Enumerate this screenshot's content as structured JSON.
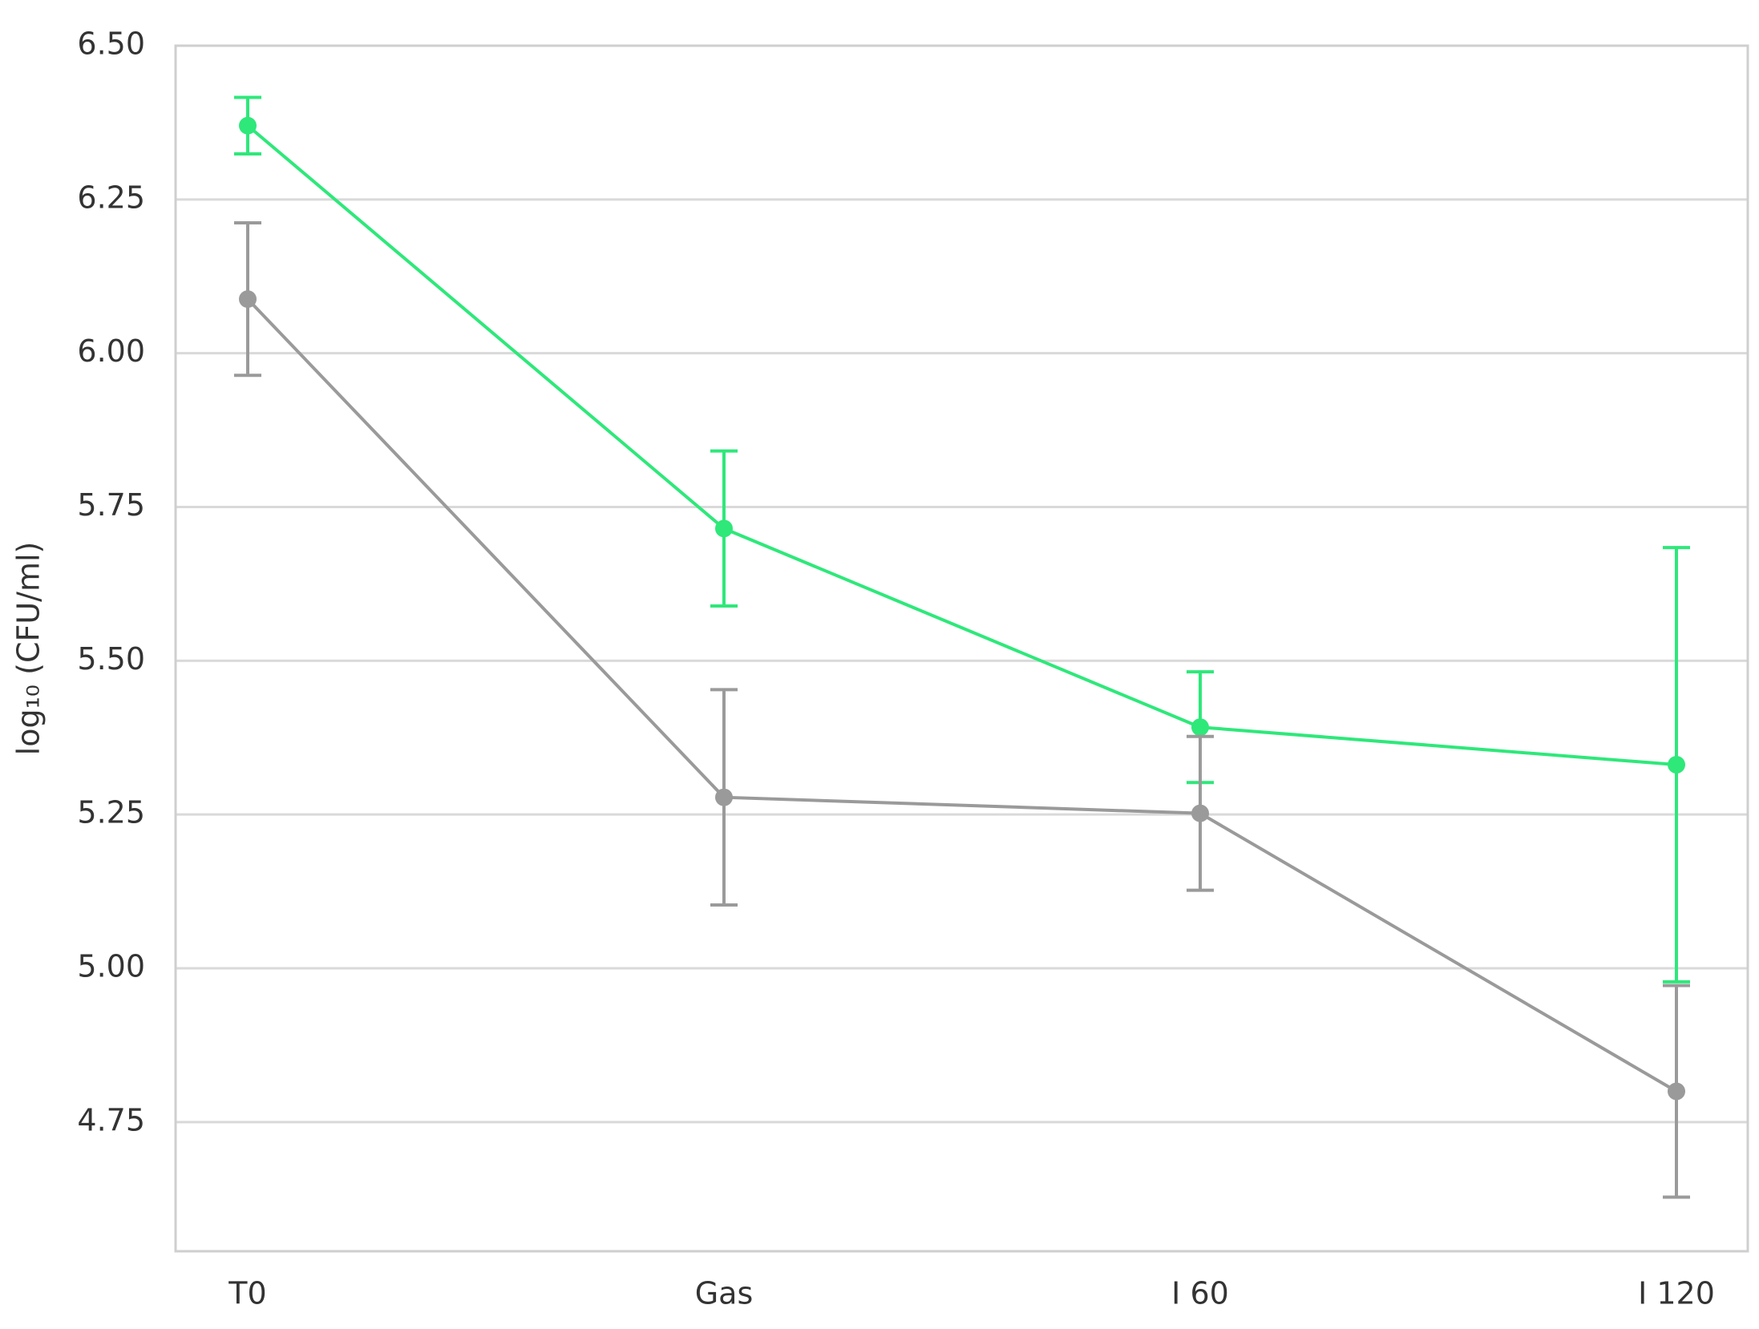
{
  "chart_data": {
    "type": "line",
    "y_label": "log₁₀ (CFU/ml)",
    "categories": [
      "T0",
      "Gas",
      "I 60",
      "I 120"
    ],
    "series": [
      {
        "color": "#2ee87a",
        "values": [
          6.37,
          5.715,
          5.392,
          5.331
        ],
        "errors": [
          0.046,
          0.126,
          0.09,
          0.353
        ]
      },
      {
        "color": "#9a9a9a",
        "values": [
          6.088,
          5.278,
          5.252,
          4.8
        ],
        "errors": [
          0.124,
          0.175,
          0.125,
          0.172
        ]
      }
    ],
    "ylim": [
      4.54,
      6.5
    ],
    "yticks": [
      {
        "value": 4.75,
        "label": "4.75"
      },
      {
        "value": 5,
        "label": "5.00"
      },
      {
        "value": 5.25,
        "label": "5.25"
      },
      {
        "value": 5.5,
        "label": "5.50"
      },
      {
        "value": 5.75,
        "label": "5.75"
      },
      {
        "value": 6,
        "label": "6.00"
      },
      {
        "value": 6.25,
        "label": "6.25"
      },
      {
        "value": 6.5,
        "label": "6.50"
      }
    ],
    "grid": true
  }
}
